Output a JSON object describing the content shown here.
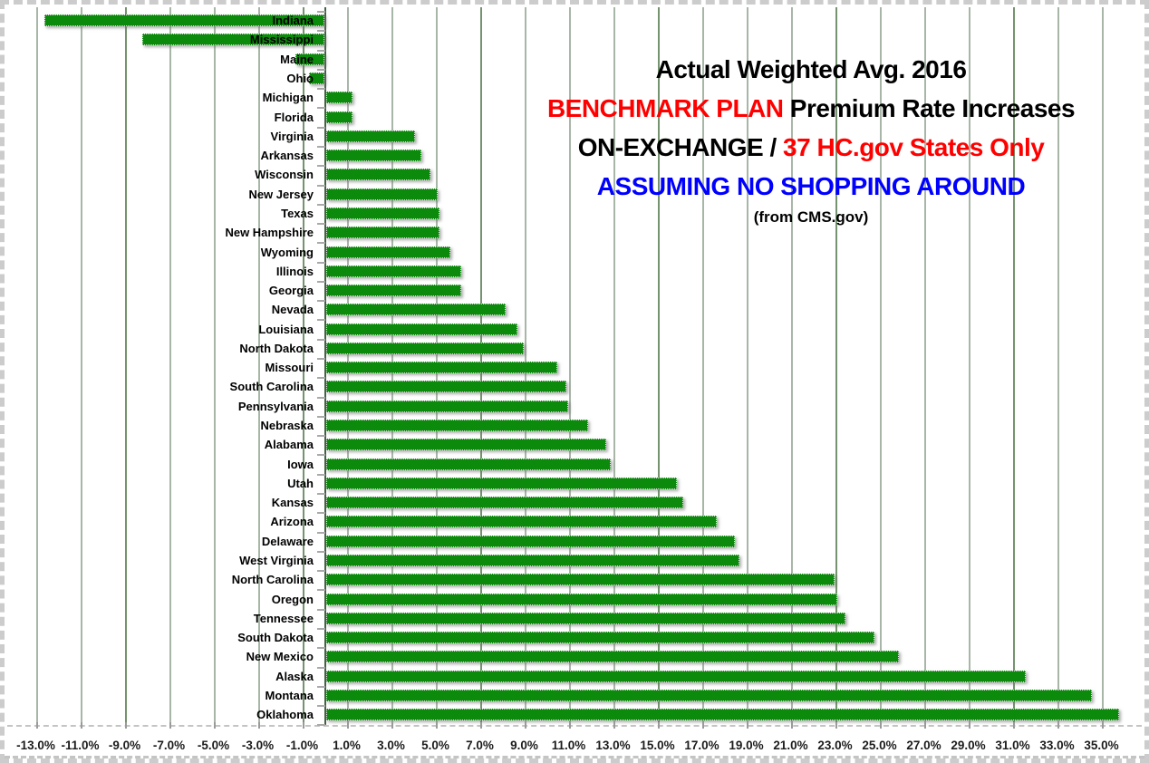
{
  "title": {
    "line1": "Actual Weighted Avg. 2016",
    "line2_red": "BENCHMARK PLAN",
    "line2_black": " Premium Rate Increases",
    "line3_black": "ON-EXCHANGE / ",
    "line3_red": "37 HC.gov States Only",
    "line4_blue": "ASSUMING NO SHOPPING AROUND",
    "line5": "(from CMS.gov)"
  },
  "colors": {
    "bar_green": "#0c8a0c",
    "gridline": "#a8b6a8",
    "gridline_accent": "#74936e",
    "zero_axis": "#446144",
    "title_red": "#ff0000",
    "title_blue": "#0000ff",
    "title_black": "#000000",
    "tick_text": "#1c1c1c"
  },
  "chart_data": {
    "type": "bar",
    "orientation": "horizontal",
    "title": "Actual Weighted Avg. 2016 BENCHMARK PLAN Premium Rate Increases ON-EXCHANGE / 37 HC.gov States Only ASSUMING NO SHOPPING AROUND (from CMS.gov)",
    "xlabel": "",
    "ylabel": "",
    "grid": true,
    "xlim": [
      -14.3,
      36.8
    ],
    "x_tick_step": 2,
    "x_tick_labels": [
      "-13.0%",
      "-11.0%",
      "-9.0%",
      "-7.0%",
      "-5.0%",
      "-3.0%",
      "-1.0%",
      "1.0%",
      "3.0%",
      "5.0%",
      "7.0%",
      "9.0%",
      "11.0%",
      "13.0%",
      "15.0%",
      "17.0%",
      "19.0%",
      "21.0%",
      "23.0%",
      "25.0%",
      "27.0%",
      "29.0%",
      "31.0%",
      "33.0%",
      "35.0%"
    ],
    "x_tick_values": [
      -13,
      -11,
      -9,
      -7,
      -5,
      -3,
      -1,
      1,
      3,
      5,
      7,
      9,
      11,
      13,
      15,
      17,
      19,
      21,
      23,
      25,
      27,
      29,
      31,
      33,
      35
    ],
    "categories": [
      "Indiana",
      "Mississippi",
      "Maine",
      "Ohio",
      "Michigan",
      "Florida",
      "Virginia",
      "Arkansas",
      "Wisconsin",
      "New Jersey",
      "Texas",
      "New Hampshire",
      "Wyoming",
      "Illinois",
      "Georgia",
      "Nevada",
      "Louisiana",
      "North Dakota",
      "Missouri",
      "South Carolina",
      "Pennsylvania",
      "Nebraska",
      "Alabama",
      "Iowa",
      "Utah",
      "Kansas",
      "Arizona",
      "Delaware",
      "West Virginia",
      "North Carolina",
      "Oregon",
      "Tennessee",
      "South Dakota",
      "New Mexico",
      "Alaska",
      "Montana",
      "Oklahoma"
    ],
    "values": [
      -12.6,
      -8.2,
      -1.3,
      -0.7,
      1.2,
      1.2,
      4.0,
      4.3,
      4.7,
      5.0,
      5.1,
      5.1,
      5.6,
      6.1,
      6.1,
      8.1,
      8.6,
      8.9,
      10.4,
      10.8,
      10.9,
      11.8,
      12.6,
      12.8,
      15.8,
      16.1,
      17.6,
      18.4,
      18.6,
      22.9,
      23.0,
      23.4,
      24.7,
      25.8,
      31.5,
      34.5,
      35.7
    ],
    "unit": "%",
    "legend": null
  }
}
